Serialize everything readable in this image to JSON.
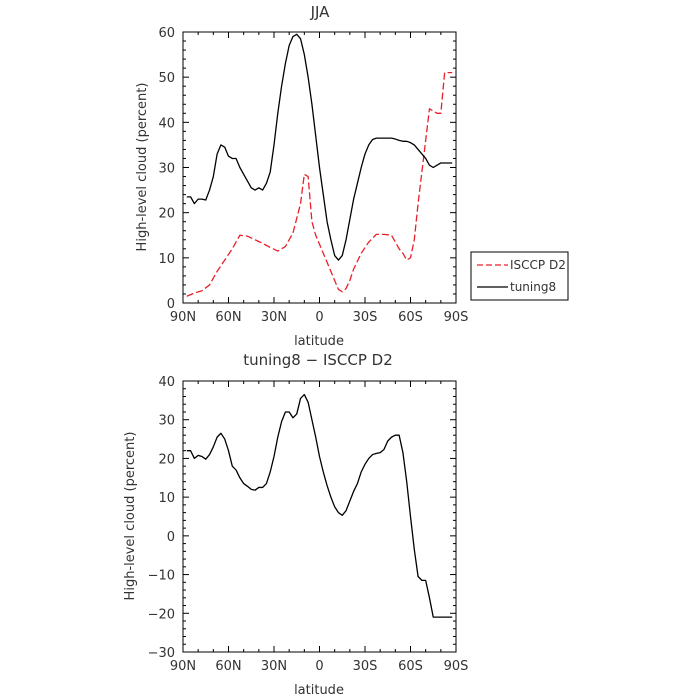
{
  "chart_data": [
    {
      "type": "line",
      "title": "JJA",
      "xlabel": "latitude",
      "ylabel": "High-level cloud (percent)",
      "xlim": [
        90,
        -90
      ],
      "ylim": [
        0,
        60
      ],
      "x_ticks": [
        90,
        60,
        30,
        0,
        -30,
        -60,
        -90
      ],
      "x_tick_labels": [
        "90N",
        "60N",
        "30N",
        "0",
        "30S",
        "60S",
        "90S"
      ],
      "y_ticks": [
        0,
        10,
        20,
        30,
        40,
        50,
        60
      ],
      "y_tick_labels": [
        "0",
        "10",
        "20",
        "30",
        "40",
        "50",
        "60"
      ],
      "legend_position": "right",
      "series": [
        {
          "name": "ISCCP D2",
          "color": "#e8202a",
          "style": "dashed",
          "x": [
            87.5,
            82.5,
            77.5,
            72.5,
            67.5,
            62.5,
            57.5,
            52.5,
            47.5,
            42.5,
            37.5,
            32.5,
            27.5,
            22.5,
            17.5,
            12.5,
            10,
            7.5,
            5,
            2.5,
            0,
            -2.5,
            -7.5,
            -12.5,
            -15,
            -17.5,
            -20,
            -22.5,
            -27.5,
            -32.5,
            -37.5,
            -42.5,
            -47.5,
            -52.5,
            -55,
            -57.5,
            -60,
            -62.5,
            -65,
            -67.5,
            -72.5,
            -77.5,
            -80,
            -82.5,
            -87.5
          ],
          "y": [
            1.5,
            2.2,
            2.7,
            4.0,
            7.0,
            9.5,
            12.0,
            15.0,
            14.8,
            14.0,
            13.2,
            12.3,
            11.5,
            12.5,
            15.5,
            22.0,
            28.5,
            28.0,
            18.0,
            15.0,
            13.0,
            11.0,
            7.0,
            3.0,
            2.5,
            3.2,
            5.0,
            7.5,
            11.0,
            13.5,
            15.2,
            15.2,
            15.0,
            12.0,
            11.0,
            9.5,
            10.0,
            14.0,
            22.0,
            29.0,
            43.0,
            42.0,
            42.0,
            51.0,
            51.0
          ]
        },
        {
          "name": "tuning8",
          "color": "#000000",
          "style": "solid",
          "x": [
            87.5,
            85,
            82.5,
            80,
            77.5,
            75,
            72.5,
            70,
            67.5,
            65,
            62.5,
            60,
            57.5,
            55,
            52.5,
            50,
            47.5,
            45,
            42.5,
            40,
            37.5,
            35,
            32.5,
            30,
            27.5,
            25,
            22.5,
            20,
            17.5,
            15,
            12.5,
            10,
            7.5,
            5,
            2.5,
            0,
            -2.5,
            -5,
            -7.5,
            -10,
            -12.5,
            -15,
            -17.5,
            -20,
            -22.5,
            -25,
            -27.5,
            -30,
            -32.5,
            -35,
            -37.5,
            -40,
            -42.5,
            -45,
            -47.5,
            -50,
            -52.5,
            -55,
            -57.5,
            -60,
            -62.5,
            -65,
            -67.5,
            -70,
            -72.5,
            -75,
            -77.5,
            -80,
            -82.5,
            -85,
            -87.5
          ],
          "y": [
            23.5,
            23.5,
            22.0,
            23.0,
            23.0,
            22.8,
            25.0,
            28.0,
            33.0,
            35.0,
            34.5,
            32.5,
            32.0,
            32.0,
            30.0,
            28.5,
            27.0,
            25.5,
            25.0,
            25.5,
            25.0,
            26.5,
            29.0,
            35.0,
            42.0,
            48.0,
            53.0,
            57.0,
            59.0,
            59.5,
            58.5,
            55.0,
            50.0,
            44.0,
            37.0,
            30.0,
            24.0,
            18.0,
            14.0,
            10.5,
            9.5,
            10.5,
            14.0,
            18.5,
            23.0,
            26.5,
            30.0,
            33.0,
            35.0,
            36.2,
            36.5,
            36.5,
            36.5,
            36.5,
            36.5,
            36.3,
            36.0,
            35.8,
            35.8,
            35.5,
            35.0,
            34.0,
            33.0,
            32.0,
            30.5,
            30.0,
            30.5,
            31.0,
            31.0,
            31.0,
            31.0
          ]
        }
      ]
    },
    {
      "type": "line",
      "title": "tuning8 − ISCCP D2",
      "xlabel": "latitude",
      "ylabel": "High-level cloud (percent)",
      "xlim": [
        90,
        -90
      ],
      "ylim": [
        -30,
        40
      ],
      "x_ticks": [
        90,
        60,
        30,
        0,
        -30,
        -60,
        -90
      ],
      "x_tick_labels": [
        "90N",
        "60N",
        "30N",
        "0",
        "30S",
        "60S",
        "90S"
      ],
      "y_ticks": [
        -30,
        -20,
        -10,
        0,
        10,
        20,
        30,
        40
      ],
      "y_tick_labels": [
        "−30",
        "−20",
        "−10",
        "0",
        "10",
        "20",
        "30",
        "40"
      ],
      "series": [
        {
          "color": "#000000",
          "style": "solid",
          "x": [
            87.5,
            85,
            82.5,
            80,
            77.5,
            75,
            72.5,
            70,
            67.5,
            65,
            62.5,
            60,
            57.5,
            55,
            52.5,
            50,
            47.5,
            45,
            42.5,
            40,
            37.5,
            35,
            32.5,
            30,
            27.5,
            25,
            22.5,
            20,
            17.5,
            15,
            12.5,
            10,
            7.5,
            5,
            2.5,
            0,
            -2.5,
            -5,
            -7.5,
            -10,
            -12.5,
            -15,
            -17.5,
            -20,
            -22.5,
            -25,
            -27.5,
            -30,
            -32.5,
            -35,
            -37.5,
            -40,
            -42.5,
            -45,
            -47.5,
            -50,
            -52.5,
            -55,
            -57.5,
            -60,
            -62.5,
            -65,
            -67.5,
            -70,
            -72.5,
            -75,
            -77.5,
            -80,
            -82.5,
            -85,
            -87.5
          ],
          "y": [
            22.0,
            22.0,
            20.0,
            20.8,
            20.5,
            19.8,
            21.0,
            23.0,
            25.5,
            26.5,
            25.0,
            22.0,
            18.0,
            17.0,
            15.0,
            13.5,
            12.8,
            12.0,
            11.8,
            12.5,
            12.5,
            13.5,
            16.5,
            20.5,
            25.5,
            29.5,
            32.0,
            32.0,
            30.5,
            31.5,
            35.5,
            36.5,
            34.5,
            30.0,
            25.5,
            20.5,
            16.5,
            13.0,
            10.0,
            7.5,
            6.0,
            5.3,
            6.5,
            9.0,
            11.5,
            13.5,
            16.5,
            18.5,
            20.0,
            21.0,
            21.3,
            21.5,
            22.3,
            24.5,
            25.5,
            26.0,
            26.0,
            21.5,
            14.0,
            5.0,
            -3.5,
            -10.5,
            -11.5,
            -11.5,
            -16.0,
            -21.0,
            -21.0,
            -21.0,
            -21.0,
            -21.0,
            -21.0
          ]
        }
      ]
    }
  ]
}
